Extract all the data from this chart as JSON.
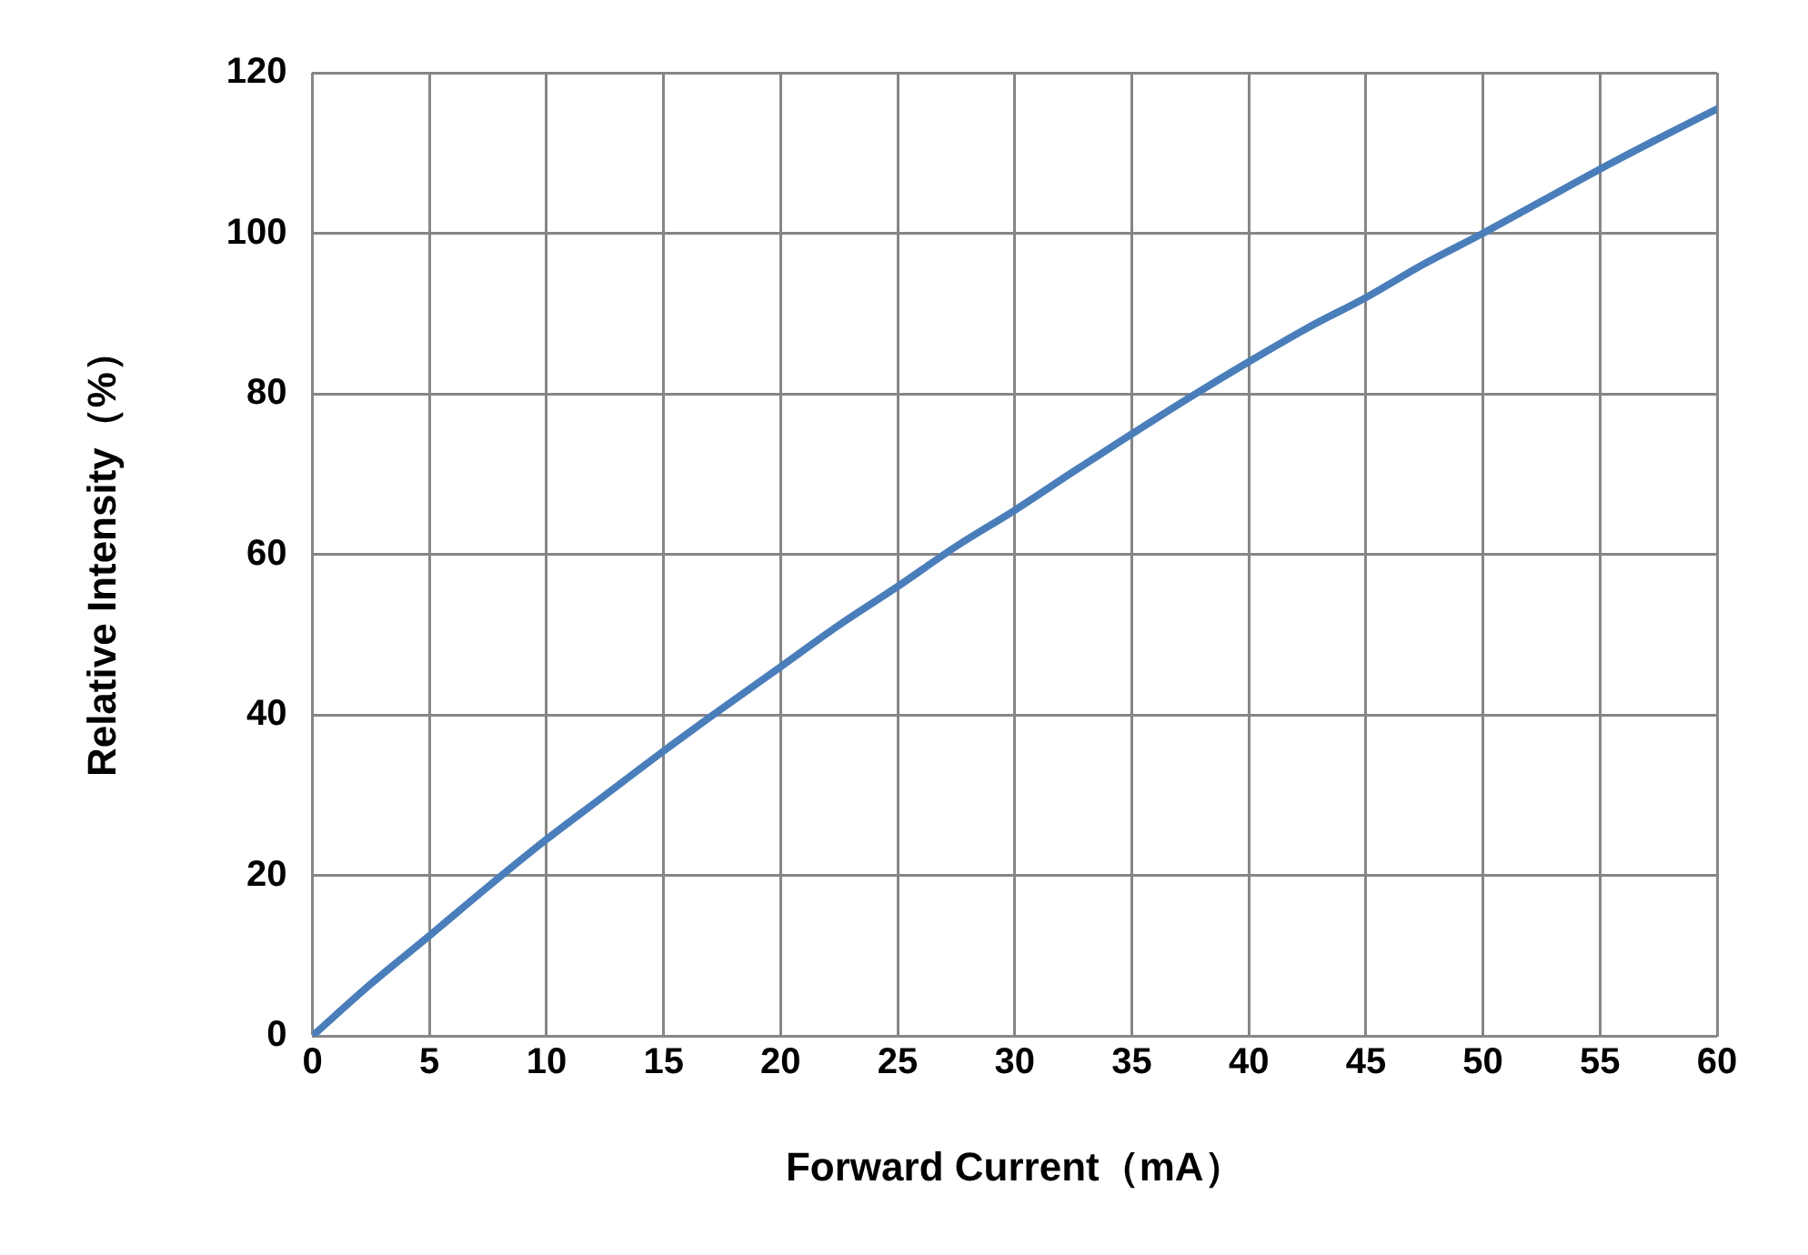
{
  "chart_data": {
    "type": "line",
    "xlabel": "Forward Current（mA）",
    "ylabel": "Relative Intensity（%）",
    "x": [
      0,
      2.5,
      5,
      7.5,
      10,
      12.5,
      15,
      17.5,
      20,
      22.5,
      25,
      27.5,
      30,
      32.5,
      35,
      37.5,
      40,
      42.5,
      45,
      47.5,
      50,
      52.5,
      55,
      57.5,
      60
    ],
    "series": [
      {
        "color": "#4a7ebb",
        "values": [
          0,
          6.5,
          12.5,
          18.6,
          24.5,
          30,
          35.5,
          40.8,
          46,
          51.2,
          56,
          61,
          65.5,
          70.3,
          75,
          79.6,
          84,
          88.2,
          92,
          96.2,
          100,
          104,
          108,
          111.8,
          115.5
        ]
      }
    ],
    "xlim": [
      0,
      60
    ],
    "xticks": [
      0,
      5,
      10,
      15,
      20,
      25,
      30,
      35,
      40,
      45,
      50,
      55,
      60
    ],
    "ylim": [
      0,
      120
    ],
    "yticks": [
      0,
      20,
      40,
      60,
      80,
      100,
      120
    ],
    "grid": true,
    "legend": false,
    "marker": "none",
    "line_style": "solid"
  }
}
